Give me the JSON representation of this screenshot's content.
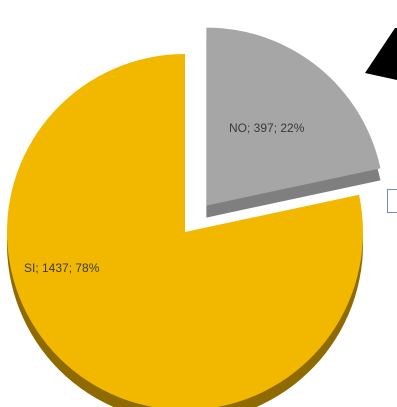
{
  "chart_data": {
    "type": "pie",
    "exploded": true,
    "categories": [
      "NO",
      "SI"
    ],
    "values": [
      397,
      1437
    ],
    "percentages": [
      22,
      78
    ],
    "labels": [
      "NO; 397; 22%",
      "SI; 1437; 78%"
    ],
    "colors": {
      "NO": "#a6a6a6",
      "SI": "#f2b800",
      "NO_shadow": "#7f7f7f",
      "SI_shadow": "#8f6a00"
    }
  }
}
